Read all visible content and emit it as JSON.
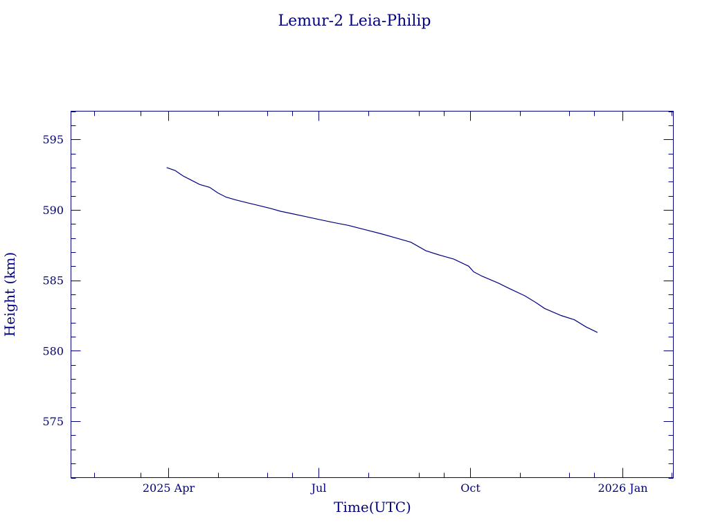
{
  "chart_data": {
    "type": "line",
    "title": "Lemur-2 Leia-Philip",
    "xlabel": "Time(UTC)",
    "ylabel": "Height (km)",
    "x_range": [
      "2025-02-01",
      "2026-02-01"
    ],
    "ylim": [
      571,
      597
    ],
    "y_ticks": [
      575,
      580,
      585,
      590,
      595
    ],
    "y_minor_step": 1,
    "x_ticks": [
      {
        "date": "2025-04-01",
        "label": "2025 Apr"
      },
      {
        "date": "2025-07-01",
        "label": "Jul"
      },
      {
        "date": "2025-10-01",
        "label": "Oct"
      },
      {
        "date": "2026-01-01",
        "label": "2026 Jan"
      }
    ],
    "x_minor_ticks": [
      "2025-02-15",
      "2025-03-15",
      "2025-05-01",
      "2025-05-31",
      "2025-06-15",
      "2025-07-31",
      "2025-08-31",
      "2025-09-15",
      "2025-10-31",
      "2025-11-30",
      "2025-12-15",
      "2026-01-31"
    ],
    "grid": false,
    "series": [
      {
        "color": "#00007f",
        "points": [
          [
            "2025-03-31",
            593.0
          ],
          [
            "2025-04-05",
            592.8
          ],
          [
            "2025-04-10",
            592.4
          ],
          [
            "2025-04-15",
            592.1
          ],
          [
            "2025-04-20",
            591.8
          ],
          [
            "2025-04-26",
            591.6
          ],
          [
            "2025-05-01",
            591.2
          ],
          [
            "2025-05-06",
            590.9
          ],
          [
            "2025-05-12",
            590.7
          ],
          [
            "2025-05-19",
            590.5
          ],
          [
            "2025-05-26",
            590.3
          ],
          [
            "2025-06-02",
            590.1
          ],
          [
            "2025-06-08",
            589.9
          ],
          [
            "2025-06-16",
            589.7
          ],
          [
            "2025-06-24",
            589.5
          ],
          [
            "2025-07-02",
            589.3
          ],
          [
            "2025-07-10",
            589.1
          ],
          [
            "2025-07-19",
            588.9
          ],
          [
            "2025-07-29",
            588.6
          ],
          [
            "2025-08-08",
            588.3
          ],
          [
            "2025-08-17",
            588.0
          ],
          [
            "2025-08-26",
            587.7
          ],
          [
            "2025-09-04",
            587.1
          ],
          [
            "2025-09-12",
            586.8
          ],
          [
            "2025-09-21",
            586.5
          ],
          [
            "2025-09-30",
            586.0
          ],
          [
            "2025-10-03",
            585.6
          ],
          [
            "2025-10-08",
            585.3
          ],
          [
            "2025-10-18",
            584.8
          ],
          [
            "2025-10-25",
            584.4
          ],
          [
            "2025-11-03",
            583.9
          ],
          [
            "2025-11-10",
            583.4
          ],
          [
            "2025-11-15",
            583.0
          ],
          [
            "2025-11-25",
            582.5
          ],
          [
            "2025-12-03",
            582.2
          ],
          [
            "2025-12-10",
            581.7
          ],
          [
            "2025-12-17",
            581.3
          ]
        ]
      }
    ]
  }
}
